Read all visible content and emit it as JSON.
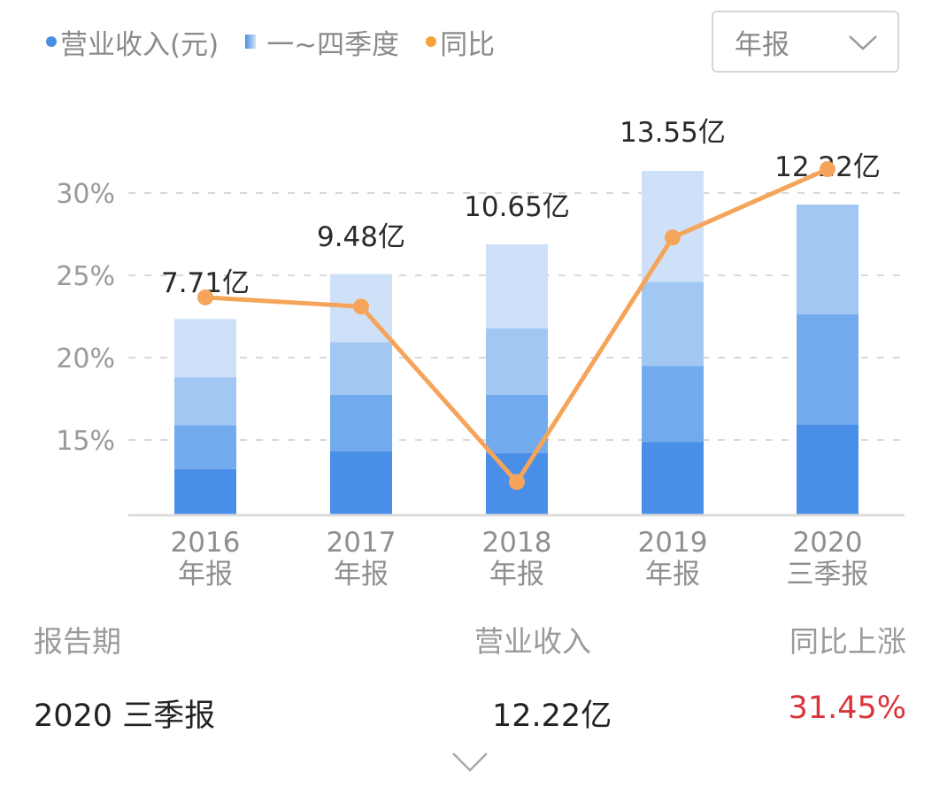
{
  "legend": {
    "items": [
      {
        "label": "营业收入(元)",
        "icon": "blue-dot-icon",
        "color": "#4a90e2"
      },
      {
        "label": "一~四季度",
        "icon": "blue-gradient-square-icon",
        "color": "#4a90e2"
      },
      {
        "label": "同比",
        "icon": "orange-dot-icon",
        "color": "#f5a13c"
      }
    ]
  },
  "period_select": {
    "value": "年报",
    "icon": "chevron-down-icon"
  },
  "chart_data": {
    "type": "bar+line",
    "categories": [
      "2016 年报",
      "2017 年报",
      "2018 年报",
      "2019 年报",
      "2020 三季报"
    ],
    "category_lines": [
      [
        "2016",
        "年报"
      ],
      [
        "2017",
        "年报"
      ],
      [
        "2018",
        "年报"
      ],
      [
        "2019",
        "年报"
      ],
      [
        "2020",
        "三季报"
      ]
    ],
    "revenue_labels": [
      "7.71亿",
      "9.48亿",
      "10.65亿",
      "13.55亿",
      "12.22亿"
    ],
    "revenue": [
      7.71,
      9.48,
      10.65,
      13.55,
      12.22
    ],
    "revenue_unit": "亿",
    "quarterly_segments": {
      "description": "stacked Q1-Q4 segments (cumulative, in 亿, estimated from bar heights)",
      "series": [
        {
          "name": "一季度",
          "values": [
            1.79,
            2.48,
            2.41,
            2.86,
            3.55
          ]
        },
        {
          "name": "二季度",
          "values": [
            1.72,
            2.24,
            2.31,
            3.0,
            4.34
          ]
        },
        {
          "name": "三季度",
          "values": [
            1.9,
            2.07,
            2.62,
            3.31,
            4.33
          ]
        },
        {
          "name": "四季度",
          "values": [
            2.3,
            2.69,
            3.31,
            4.38,
            0
          ]
        }
      ]
    },
    "yoy_growth": {
      "name": "同比",
      "values": [
        23.66,
        23.1,
        12.45,
        27.3,
        31.45
      ],
      "unit": "%"
    },
    "y_ticks": [
      "15%",
      "20%",
      "25%",
      "30%"
    ],
    "ylim_percent": [
      10.5,
      32
    ],
    "grid": "dashed horizontal",
    "colors": {
      "q1": "#4a8fe7",
      "q2": "#72aaee",
      "q3": "#a2c7f3",
      "q4": "#cfe1f9",
      "line": "#f5a55a",
      "axis": "#dcdcdc",
      "grid": "#d9d9d9"
    }
  },
  "table": {
    "headers": [
      "报告期",
      "营业收入",
      "同比上涨"
    ],
    "row": {
      "period": "2020 三季报",
      "revenue": "12.22亿",
      "yoy": "31.45%"
    },
    "yoy_color": "#d9343a"
  },
  "expand": {
    "icon": "chevron-down-icon"
  }
}
